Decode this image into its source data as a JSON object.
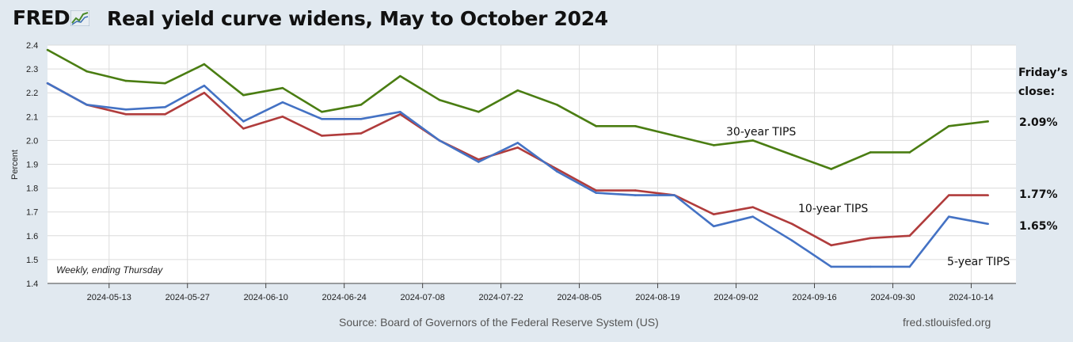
{
  "header": {
    "logo_text": "FRED",
    "title": "Real yield curve widens, May to October 2024"
  },
  "footer": {
    "source": "Source: Board of Governors of the Federal Reserve System (US)",
    "url": "fred.stlouisfed.org"
  },
  "colors": {
    "thirty": "#4a7d12",
    "ten": "#b03c3c",
    "five": "#4472c4",
    "plot_bg": "#ffffff",
    "page_bg": "#e1e9f0",
    "grid": "#dcdcdc"
  },
  "chart_data": {
    "type": "line",
    "title": "Real yield curve widens, May to October 2024",
    "ylabel": "Percent",
    "xlabel": "",
    "ylim": [
      1.4,
      2.4
    ],
    "yticks": [
      "1.4",
      "1.5",
      "1.6",
      "1.7",
      "1.8",
      "1.9",
      "2.0",
      "2.1",
      "2.2",
      "2.3",
      "2.4"
    ],
    "xticks": [
      "2024-05-13",
      "2024-05-27",
      "2024-06-10",
      "2024-06-24",
      "2024-07-08",
      "2024-07-22",
      "2024-08-05",
      "2024-08-19",
      "2024-09-02",
      "2024-09-16",
      "2024-09-30",
      "2024-10-14"
    ],
    "x": [
      "2024-05-02",
      "2024-05-09",
      "2024-05-16",
      "2024-05-23",
      "2024-05-30",
      "2024-06-06",
      "2024-06-13",
      "2024-06-20",
      "2024-06-27",
      "2024-07-04",
      "2024-07-11",
      "2024-07-18",
      "2024-07-25",
      "2024-08-01",
      "2024-08-08",
      "2024-08-15",
      "2024-08-22",
      "2024-08-29",
      "2024-09-05",
      "2024-09-12",
      "2024-09-19",
      "2024-09-26",
      "2024-10-03",
      "2024-10-10",
      "2024-10-17"
    ],
    "series": [
      {
        "name": "30-year TIPS",
        "key": "thirty",
        "values": [
          2.38,
          2.29,
          2.25,
          2.24,
          2.32,
          2.19,
          2.22,
          2.12,
          2.15,
          2.27,
          2.17,
          2.12,
          2.21,
          2.15,
          2.06,
          2.06,
          2.02,
          1.98,
          2.0,
          1.94,
          1.88,
          1.95,
          1.95,
          2.06,
          2.08
        ]
      },
      {
        "name": "10-year TIPS",
        "key": "ten",
        "values": [
          2.24,
          2.15,
          2.11,
          2.11,
          2.2,
          2.05,
          2.1,
          2.02,
          2.03,
          2.11,
          2.0,
          1.92,
          1.97,
          1.88,
          1.79,
          1.79,
          1.77,
          1.69,
          1.72,
          1.65,
          1.56,
          1.59,
          1.6,
          1.77,
          1.77
        ]
      },
      {
        "name": "5-year TIPS",
        "key": "five",
        "values": [
          2.24,
          2.15,
          2.13,
          2.14,
          2.23,
          2.08,
          2.16,
          2.09,
          2.09,
          2.12,
          2.0,
          1.91,
          1.99,
          1.87,
          1.78,
          1.77,
          1.77,
          1.64,
          1.68,
          1.58,
          1.47,
          1.47,
          1.47,
          1.68,
          1.65
        ]
      }
    ],
    "annotations": {
      "thirty_label": "30-year TIPS",
      "ten_label": "10-year TIPS",
      "five_label": "5-year TIPS",
      "close_line1": "Friday’s",
      "close_line2": "close:",
      "thirty_close": "2.09%",
      "ten_close": "1.77%",
      "five_close": "1.65%",
      "note": "Weekly, ending Thursday"
    }
  }
}
